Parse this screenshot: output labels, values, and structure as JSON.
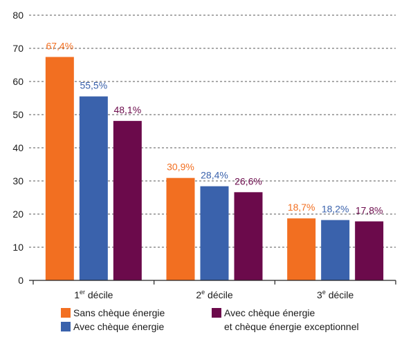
{
  "chart_data": {
    "type": "bar",
    "title": "",
    "xlabel": "",
    "ylabel": "",
    "ylim": [
      0,
      80
    ],
    "yticks": [
      0,
      10,
      20,
      30,
      40,
      50,
      60,
      70,
      80
    ],
    "grid": "horizontal-dashed",
    "categories": [
      {
        "base": "1",
        "sup": "er",
        "rest": " décile"
      },
      {
        "base": "2",
        "sup": "e",
        "rest": " décile"
      },
      {
        "base": "3",
        "sup": "e",
        "rest": " décile"
      }
    ],
    "series": [
      {
        "name": "Sans chèque énergie",
        "color": "#f26f21",
        "values": [
          67.4,
          30.9,
          18.7
        ],
        "labels": [
          "67,4%",
          "30,9%",
          "18,7%"
        ]
      },
      {
        "name": "Avec chèque énergie",
        "color": "#3a62ac",
        "values": [
          55.5,
          28.4,
          18.2
        ],
        "labels": [
          "55,5%",
          "28,4%",
          "18,2%"
        ]
      },
      {
        "name": "Avec chèque énergie",
        "name_line2": "et chèque énergie exceptionnel",
        "color": "#6b0a4b",
        "values": [
          48.1,
          26.6,
          17.8
        ],
        "labels": [
          "48,1%",
          "26,6%",
          "17,8%"
        ]
      }
    ],
    "legend_position": "bottom"
  }
}
